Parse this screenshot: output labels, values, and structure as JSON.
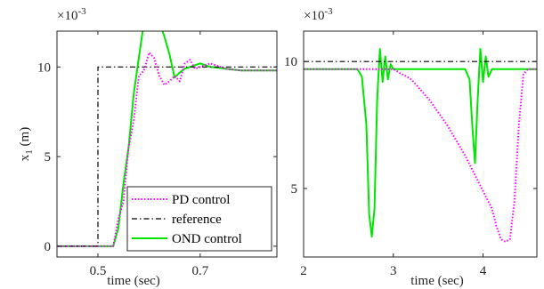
{
  "chart_data": [
    {
      "type": "line",
      "xlabel": "time (sec)",
      "ylabel": "x",
      "ylabel_sub": "1",
      "ylabel_unit": " (m)",
      "y_exponent_text": "×10",
      "y_exponent": "-3",
      "xlim": [
        0.42,
        0.85
      ],
      "ylim": [
        -0.0006,
        0.012
      ],
      "xticks": [
        0.5,
        0.7
      ],
      "xtick_labels": [
        "0.5",
        "0.7"
      ],
      "yticks": [
        0,
        0.005,
        0.01
      ],
      "ytick_labels": [
        "0",
        "5",
        "10"
      ],
      "grid": false,
      "legend": {
        "placement": "bottom-right",
        "entries": [
          "PD control",
          "reference",
          "OND control"
        ]
      },
      "series": [
        {
          "name": "PD control",
          "color": "#ff00ff",
          "style": "dotted",
          "x": [
            0.42,
            0.53,
            0.54,
            0.55,
            0.56,
            0.57,
            0.58,
            0.59,
            0.6,
            0.61,
            0.62,
            0.63,
            0.64,
            0.65,
            0.66,
            0.67,
            0.68,
            0.69,
            0.7,
            0.72,
            0.75,
            0.78,
            0.8,
            0.85
          ],
          "y": [
            0.0,
            0.0,
            0.0015,
            0.0025,
            0.0055,
            0.007,
            0.0095,
            0.0098,
            0.0108,
            0.0105,
            0.0095,
            0.009,
            0.0092,
            0.0095,
            0.0092,
            0.0102,
            0.0104,
            0.0099,
            0.01,
            0.0102,
            0.0099,
            0.0098,
            0.0098,
            0.0098
          ]
        },
        {
          "name": "reference",
          "color": "#000000",
          "style": "dash-dot",
          "x": [
            0.42,
            0.5,
            0.5,
            0.85
          ],
          "y": [
            0.0,
            0.0,
            0.01,
            0.01
          ]
        },
        {
          "name": "OND control",
          "color": "#00e600",
          "style": "solid",
          "x": [
            0.42,
            0.53,
            0.54,
            0.55,
            0.56,
            0.57,
            0.58,
            0.59,
            0.6,
            0.61,
            0.62,
            0.63,
            0.64,
            0.65,
            0.66,
            0.67,
            0.68,
            0.7,
            0.72,
            0.75,
            0.78,
            0.8,
            0.85
          ],
          "y": [
            0.0,
            0.0,
            0.001,
            0.0035,
            0.0055,
            0.0085,
            0.0105,
            0.0125,
            0.013,
            0.0125,
            0.0125,
            0.0117,
            0.0107,
            0.0094,
            0.0097,
            0.0099,
            0.01,
            0.0102,
            0.01,
            0.0099,
            0.0098,
            0.0098,
            0.0098
          ]
        }
      ]
    },
    {
      "type": "line",
      "xlabel": "time (sec)",
      "ylabel": "",
      "y_exponent_text": "×10",
      "y_exponent": "-3",
      "xlim": [
        2,
        4.6
      ],
      "ylim": [
        0.0023,
        0.0112
      ],
      "xticks": [
        2,
        3,
        4
      ],
      "xtick_labels": [
        "2",
        "3",
        "4"
      ],
      "yticks": [
        0.005,
        0.01
      ],
      "ytick_labels": [
        "5",
        "10"
      ],
      "grid": false,
      "series": [
        {
          "name": "PD control",
          "color": "#ff00ff",
          "style": "dotted",
          "x": [
            2.0,
            2.7,
            2.9,
            3.0,
            3.2,
            3.4,
            3.6,
            3.8,
            4.0,
            4.1,
            4.15,
            4.2,
            4.25,
            4.3,
            4.35,
            4.4,
            4.45,
            4.5,
            4.6
          ],
          "y": [
            0.0097,
            0.0097,
            0.0097,
            0.0097,
            0.0093,
            0.0085,
            0.0075,
            0.0063,
            0.0049,
            0.0042,
            0.0035,
            0.003,
            0.0029,
            0.003,
            0.0045,
            0.0075,
            0.0095,
            0.0097,
            0.0097
          ]
        },
        {
          "name": "reference",
          "color": "#000000",
          "style": "dash-dot",
          "x": [
            2.0,
            4.6
          ],
          "y": [
            0.01,
            0.01
          ]
        },
        {
          "name": "OND control",
          "color": "#00e600",
          "style": "solid",
          "x": [
            2.0,
            2.6,
            2.65,
            2.7,
            2.73,
            2.76,
            2.79,
            2.82,
            2.85,
            2.88,
            2.91,
            2.94,
            2.97,
            3.0,
            3.6,
            3.8,
            3.85,
            3.88,
            3.91,
            3.94,
            3.97,
            4.0,
            4.03,
            4.06,
            4.1,
            4.6
          ],
          "y": [
            0.0097,
            0.0097,
            0.0094,
            0.0075,
            0.004,
            0.0031,
            0.0042,
            0.0085,
            0.0105,
            0.0092,
            0.0102,
            0.0093,
            0.0099,
            0.0097,
            0.0097,
            0.0097,
            0.0093,
            0.0075,
            0.006,
            0.0085,
            0.0105,
            0.0092,
            0.0102,
            0.0094,
            0.0097,
            0.0097
          ]
        }
      ]
    }
  ]
}
